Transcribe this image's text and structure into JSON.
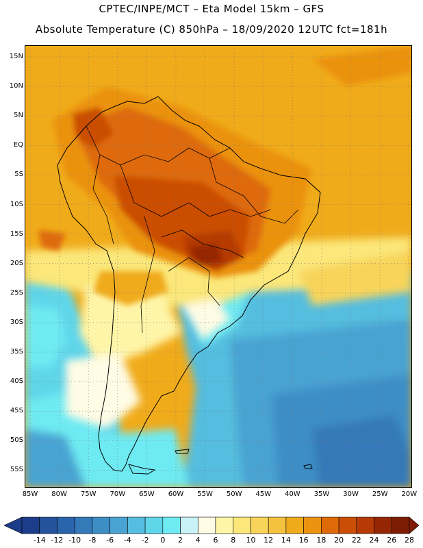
{
  "header": {
    "line1": "CPTEC/INPE/MCT –  Eta Model 15km – GFS",
    "line2": "Absolute Temperature (C) 850hPa – 18/09/2020 12UTC fct=181h"
  },
  "axes": {
    "lat_labels": [
      "15N",
      "10N",
      "5N",
      "EQ",
      "5S",
      "10S",
      "15S",
      "20S",
      "25S",
      "30S",
      "35S",
      "40S",
      "45S",
      "50S",
      "55S"
    ],
    "lon_labels": [
      "85W",
      "80W",
      "75W",
      "70W",
      "65W",
      "60W",
      "55W",
      "50W",
      "45W",
      "40W",
      "35W",
      "30W",
      "25W",
      "20W"
    ]
  },
  "colorbar": {
    "labels": [
      "-14",
      "-12",
      "-10",
      "-8",
      "-6",
      "-4",
      "-2",
      "0",
      "2",
      "4",
      "6",
      "8",
      "10",
      "12",
      "14",
      "16",
      "18",
      "20",
      "22",
      "24",
      "26",
      "28"
    ],
    "colors": [
      "#1c3d8a",
      "#24529b",
      "#2a64aa",
      "#3479b8",
      "#3e8ec6",
      "#4aa3d2",
      "#55bddf",
      "#5fd5ea",
      "#6eeaf2",
      "#c8f2f8",
      "#fffbe4",
      "#fff5a8",
      "#fbe77a",
      "#f8d45a",
      "#f4c23f",
      "#f0ab1a",
      "#eb9210",
      "#de6a07",
      "#cb4e06",
      "#b53a05",
      "#952604",
      "#7d1c03"
    ]
  }
}
